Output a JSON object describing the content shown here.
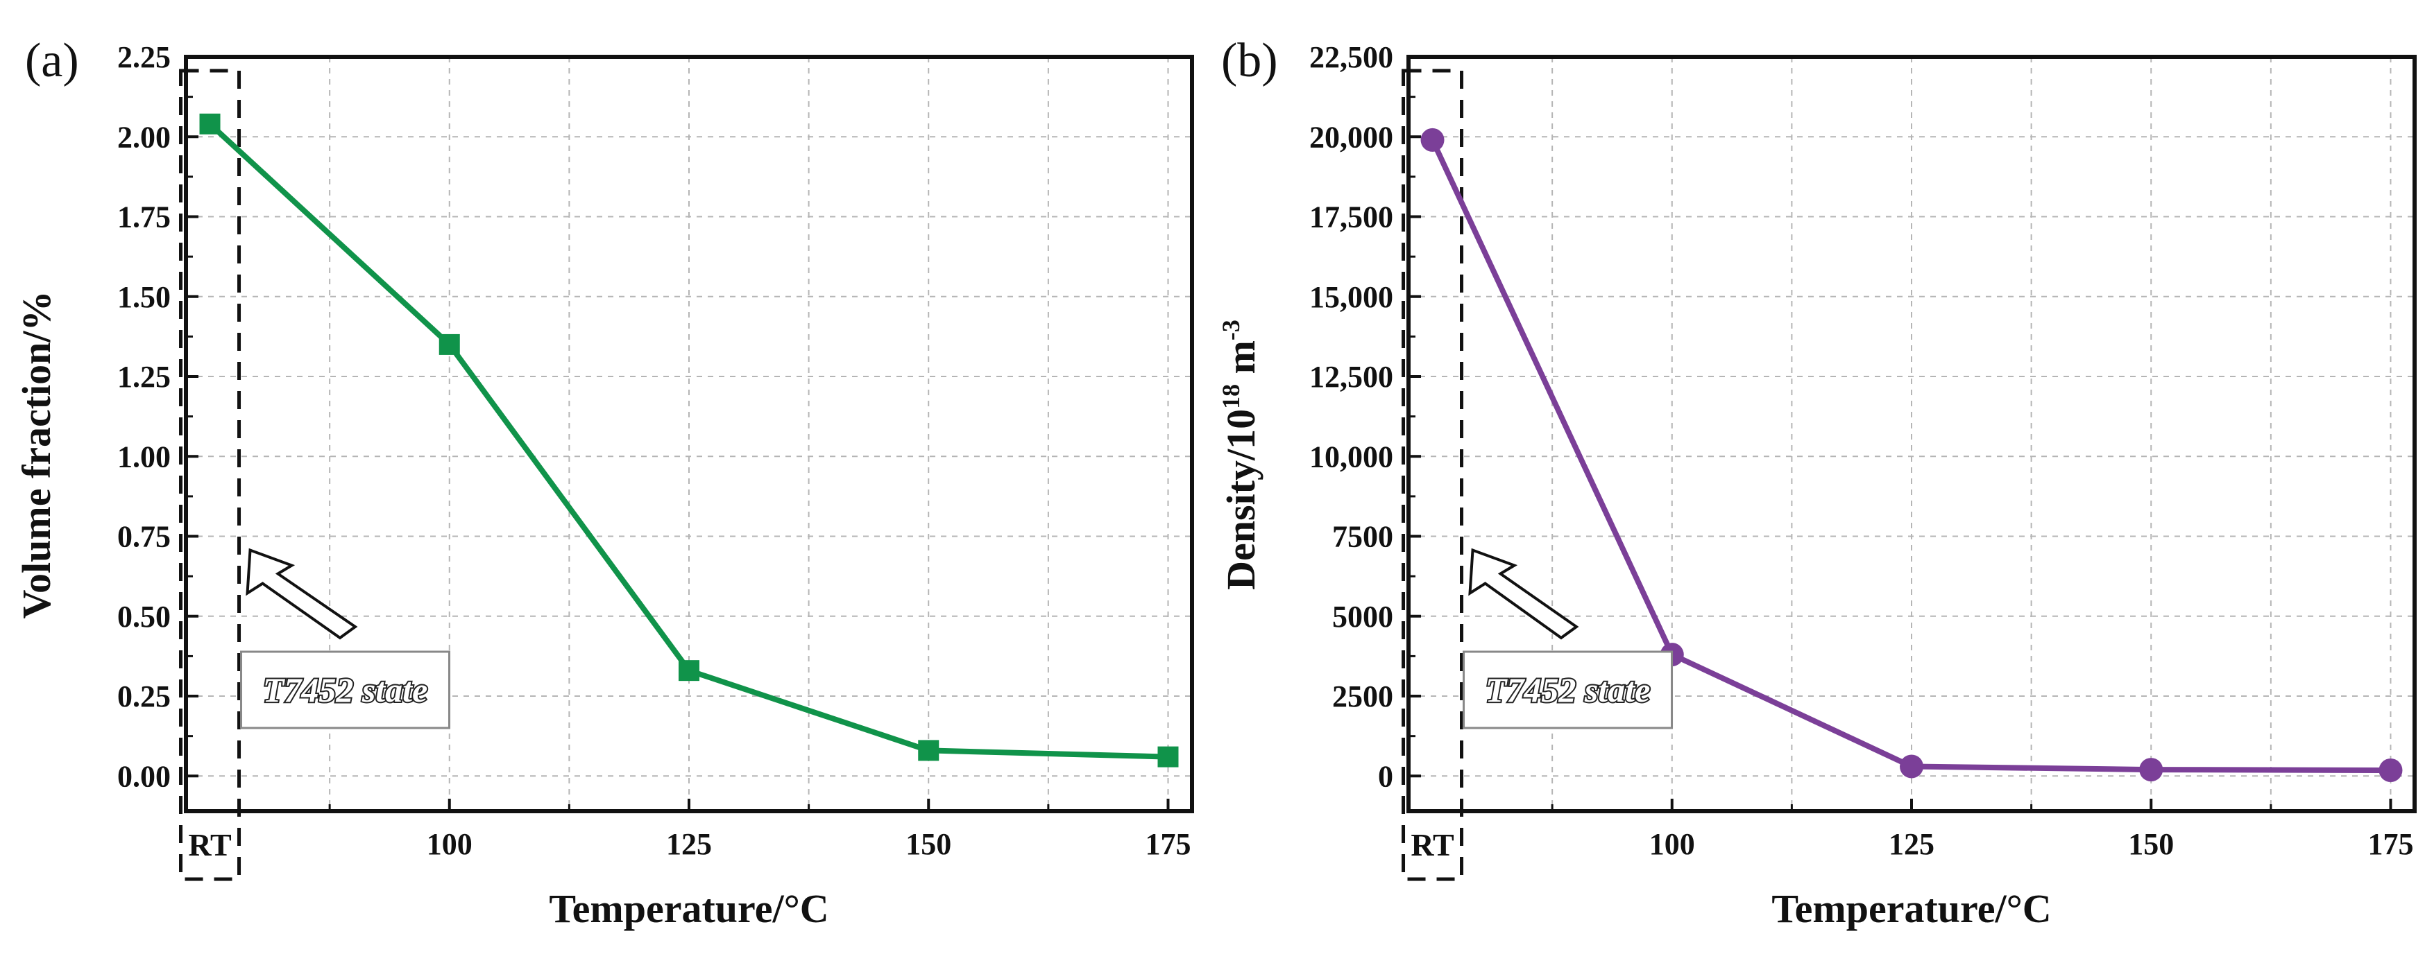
{
  "chart_data": [
    {
      "type": "line",
      "panel_label": "(a)",
      "title": "",
      "xlabel": "Temperature/°C",
      "ylabel": "Volume fraction/%",
      "ylabel_sup": "",
      "ylabel_tail": "",
      "categories": [
        "RT",
        "100",
        "125",
        "150",
        "175"
      ],
      "x": [
        75,
        100,
        125,
        150,
        175
      ],
      "xlim": [
        72.5,
        177.5
      ],
      "x_tick_labels": [
        "100",
        "125",
        "150",
        "175"
      ],
      "x_tick_values": [
        100,
        125,
        150,
        175
      ],
      "rt_label": "RT",
      "series": [
        {
          "name": "Volume fraction",
          "values": [
            2.04,
            1.35,
            0.33,
            0.08,
            0.06
          ],
          "color": "#10934a",
          "marker": "square"
        }
      ],
      "ylim": [
        -0.11,
        2.25
      ],
      "y_tick_values": [
        0,
        0.25,
        0.5,
        0.75,
        1.0,
        1.25,
        1.5,
        1.75,
        2.0,
        2.25
      ],
      "y_tick_labels": [
        "0.00",
        "0.25",
        "0.50",
        "0.75",
        "1.00",
        "1.25",
        "1.50",
        "1.75",
        "2.00",
        "2.25"
      ],
      "grid": true,
      "annotation": "T7452 state"
    },
    {
      "type": "line",
      "panel_label": "(b)",
      "title": "",
      "xlabel": "Temperature/°C",
      "ylabel": "Density/10",
      "ylabel_sup": "18",
      "ylabel_tail": " m",
      "ylabel_sup2": "-3",
      "categories": [
        "RT",
        "100",
        "125",
        "150",
        "175"
      ],
      "x": [
        75,
        100,
        125,
        150,
        175
      ],
      "xlim": [
        72.5,
        177.5
      ],
      "x_tick_labels": [
        "100",
        "125",
        "150",
        "175"
      ],
      "x_tick_values": [
        100,
        125,
        150,
        175
      ],
      "rt_label": "RT",
      "series": [
        {
          "name": "Density",
          "values": [
            19900,
            3800,
            300,
            200,
            180
          ],
          "color": "#7b3f98",
          "marker": "circle"
        }
      ],
      "ylim": [
        -1100,
        22500
      ],
      "y_tick_values": [
        0,
        2500,
        5000,
        7500,
        10000,
        12500,
        15000,
        17500,
        20000,
        22500
      ],
      "y_tick_labels": [
        "0",
        "2500",
        "5000",
        "7500",
        "10,000",
        "12,500",
        "15,000",
        "17,500",
        "20,000",
        "22,500"
      ],
      "grid": true,
      "annotation": "T7452 state"
    }
  ]
}
